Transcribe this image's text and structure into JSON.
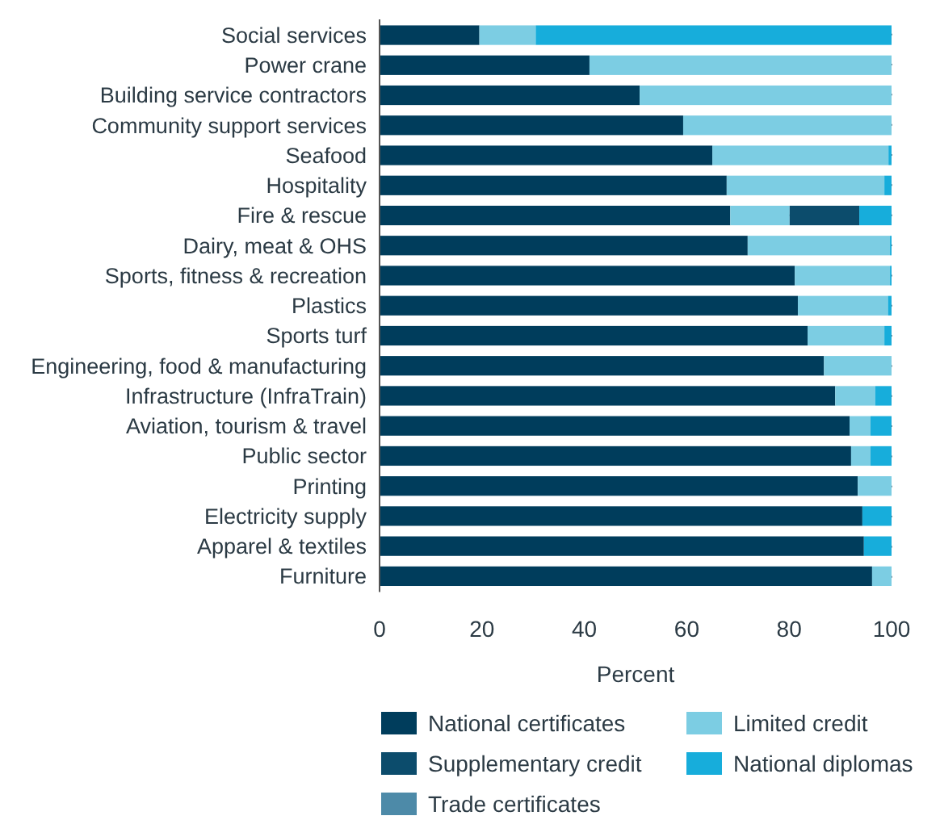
{
  "chart_data": {
    "type": "bar",
    "orientation": "horizontal",
    "stacked": true,
    "xlabel": "Percent",
    "categories": [
      "Social services",
      "Power crane",
      "Building service contractors",
      "Community support services",
      "Seafood",
      "Hospitality",
      "Fire & rescue",
      "Dairy, meat & OHS",
      "Sports, fitness & recreation",
      "Plastics",
      "Sports turf",
      "Engineering, food & manufacturing",
      "Infrastructure (InfraTrain)",
      "Aviation, tourism & travel",
      "Public sector",
      "Printing",
      "Electricity supply",
      "Apparel & textiles",
      "Furniture"
    ],
    "series": [
      {
        "name": "National certificates",
        "color": "#003d5c",
        "values": [
          19.5,
          41,
          50.8,
          59.3,
          65,
          67.8,
          68.5,
          71.9,
          81.1,
          81.7,
          83.6,
          86.8,
          89,
          91.8,
          92.1,
          93.4,
          94.3,
          94.6,
          96.2
        ]
      },
      {
        "name": "Limited credit",
        "color": "#7ccde3",
        "values": [
          11,
          59,
          49.2,
          40.7,
          34.4,
          30.8,
          11.6,
          27.8,
          18.6,
          17.6,
          15,
          13.2,
          7.8,
          4.1,
          3.8,
          6.6,
          0,
          0,
          3.8
        ]
      },
      {
        "name": "Supplementary credit",
        "color": "#0c4c6c",
        "values": [
          0,
          0,
          0,
          0,
          0,
          0,
          13.6,
          0,
          0,
          0,
          0,
          0,
          0,
          0,
          0,
          0,
          0,
          0,
          0
        ]
      },
      {
        "name": "National diplomas",
        "color": "#17addb",
        "values": [
          69.5,
          0,
          0,
          0,
          0.6,
          1.4,
          6.3,
          0.3,
          0.3,
          0.7,
          1.4,
          0,
          3.2,
          4.1,
          4.1,
          0,
          5.7,
          5.4,
          0
        ]
      },
      {
        "name": "Trade certificates",
        "color": "#4d8aa8",
        "values": [
          0,
          0,
          0,
          0,
          0,
          0,
          0,
          0,
          0,
          0,
          0,
          0,
          0,
          0,
          0,
          0,
          0,
          0,
          0
        ]
      }
    ],
    "xlim": [
      0,
      100
    ],
    "xticks": [
      0,
      20,
      40,
      60,
      80,
      100
    ],
    "grid": "x",
    "legend": "bottom"
  }
}
